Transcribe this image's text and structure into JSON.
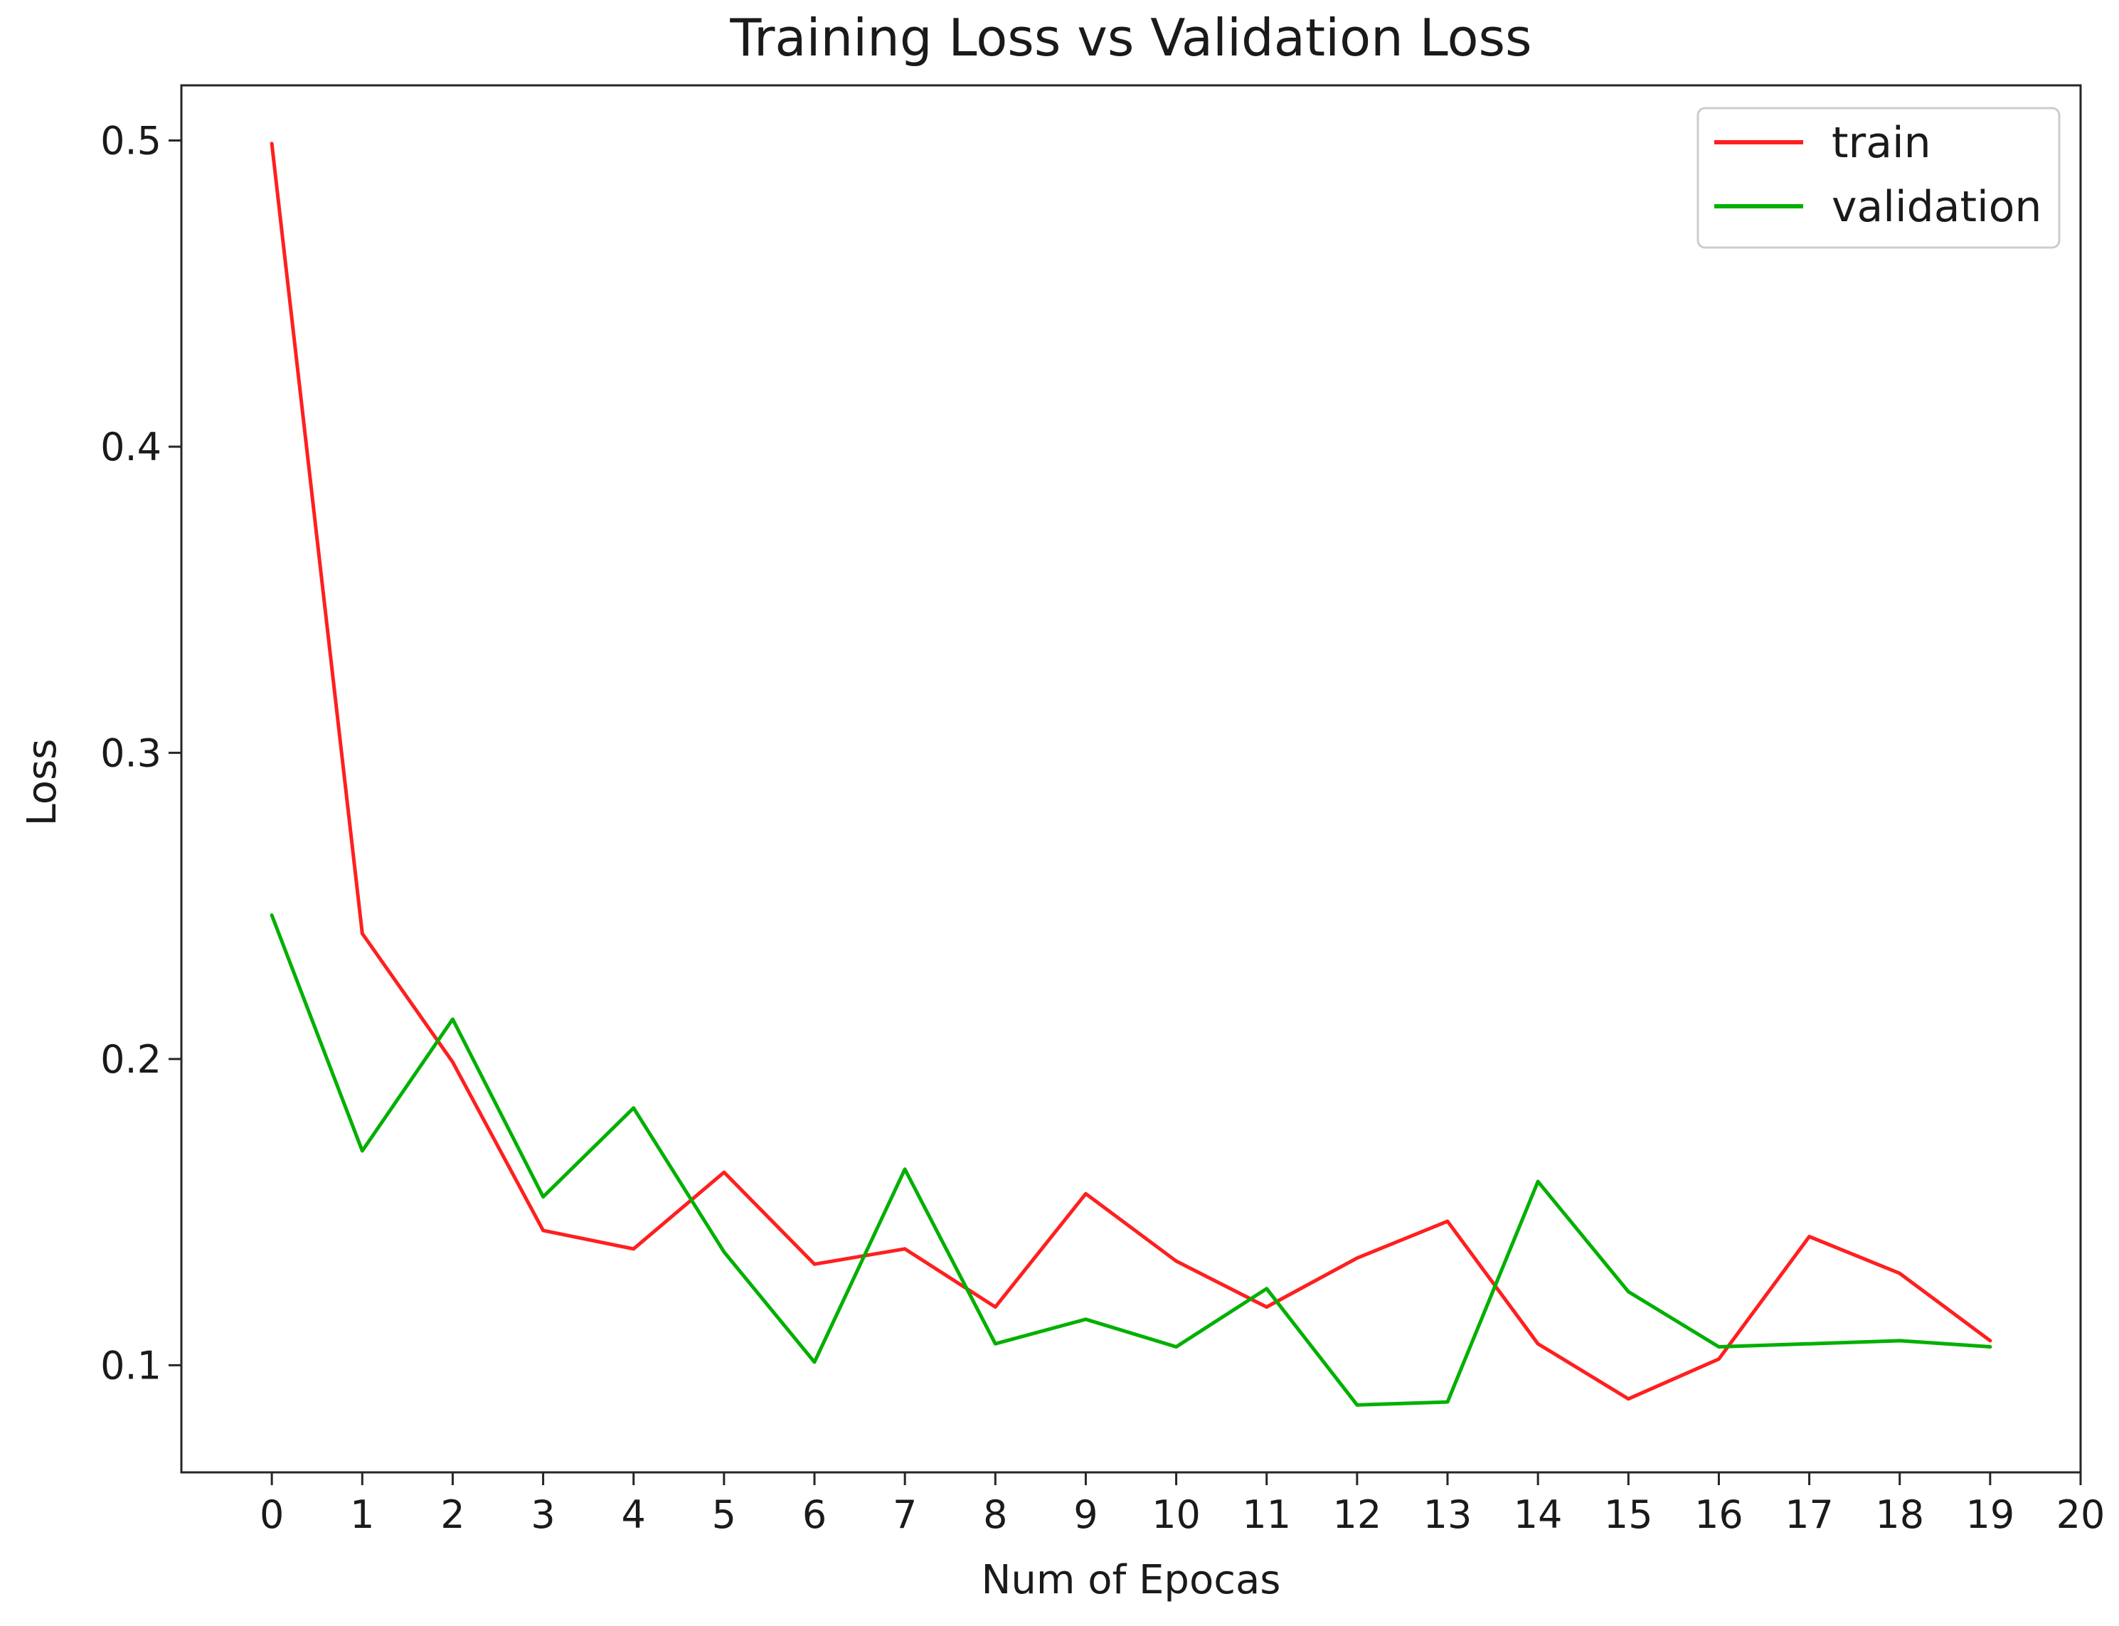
{
  "chart_data": {
    "type": "line",
    "title": "Training Loss vs Validation Loss",
    "xlabel": "Num of Epocas",
    "ylabel": "Loss",
    "xlim": [
      -1,
      20
    ],
    "ylim": [
      0.065,
      0.518
    ],
    "x_ticks": [
      0,
      1,
      2,
      3,
      4,
      5,
      6,
      7,
      8,
      9,
      10,
      11,
      12,
      13,
      14,
      15,
      16,
      17,
      18,
      19,
      20
    ],
    "y_ticks": [
      0.1,
      0.2,
      0.3,
      0.4,
      0.5
    ],
    "y_tick_labels": [
      "0.1",
      "0.2",
      "0.3",
      "0.4",
      "0.5"
    ],
    "grid": false,
    "legend_position": "top-right",
    "x": [
      0,
      1,
      2,
      3,
      4,
      5,
      6,
      7,
      8,
      9,
      10,
      11,
      12,
      13,
      14,
      15,
      16,
      17,
      18,
      19
    ],
    "series": [
      {
        "name": "train",
        "color": "#ff1f1f",
        "values": [
          0.499,
          0.241,
          0.199,
          0.144,
          0.138,
          0.163,
          0.133,
          0.138,
          0.119,
          0.156,
          0.134,
          0.119,
          0.135,
          0.147,
          0.107,
          0.089,
          0.102,
          0.142,
          0.13,
          0.108
        ]
      },
      {
        "name": "validation",
        "color": "#00b000",
        "values": [
          0.247,
          0.17,
          0.213,
          0.155,
          0.184,
          0.137,
          0.101,
          0.164,
          0.107,
          0.115,
          0.106,
          0.125,
          0.087,
          0.088,
          0.16,
          0.124,
          0.106,
          0.107,
          0.108,
          0.106
        ]
      }
    ]
  }
}
